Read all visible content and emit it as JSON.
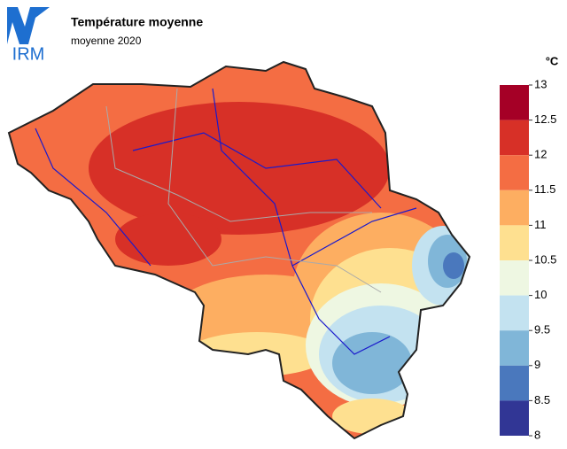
{
  "header": {
    "logo": "IRM",
    "title": "Température moyenne",
    "subtitle": "moyenne 2020"
  },
  "legend": {
    "unit": "°C",
    "ticks": [
      13,
      12.5,
      12,
      11.5,
      11,
      10.5,
      10,
      9.5,
      9,
      8.5,
      8
    ],
    "colors": [
      "#a50026",
      "#d73027",
      "#f46d43",
      "#fdae61",
      "#fee090",
      "#eef7e2",
      "#c3e2f0",
      "#80b6d8",
      "#4a78bd",
      "#313695"
    ]
  }
}
